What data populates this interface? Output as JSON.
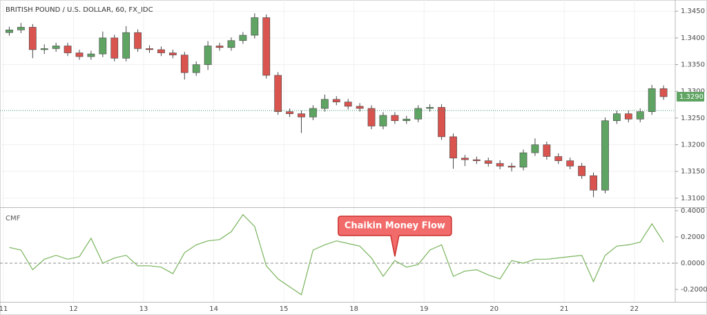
{
  "chart_data": [
    {
      "type": "candlestick",
      "title": "BRITISH POUND / U.S. DOLLAR, 60, FX_IDC",
      "up_color": "#5fa463",
      "down_color": "#d9534f",
      "open": [
        1.341,
        1.3415,
        1.342,
        1.3378,
        1.338,
        1.3385,
        1.3372,
        1.3365,
        1.337,
        1.34,
        1.3362,
        1.341,
        1.338,
        1.3378,
        1.3372,
        1.3368,
        1.3335,
        1.335,
        1.3385,
        1.3382,
        1.3395,
        1.3405,
        1.3438,
        1.333,
        1.3262,
        1.3258,
        1.3252,
        1.3268,
        1.3285,
        1.328,
        1.3272,
        1.3268,
        1.3235,
        1.3255,
        1.3245,
        1.3248,
        1.3268,
        1.327,
        1.3215,
        1.3175,
        1.3172,
        1.317,
        1.3165,
        1.316,
        1.3158,
        1.3185,
        1.32,
        1.3178,
        1.317,
        1.316,
        1.3142,
        1.3115,
        1.3245,
        1.3258,
        1.3248,
        1.3262,
        1.3305
      ],
      "high": [
        1.3421,
        1.3428,
        1.3426,
        1.3388,
        1.3391,
        1.3391,
        1.3378,
        1.3376,
        1.3412,
        1.3406,
        1.3422,
        1.3416,
        1.3386,
        1.3384,
        1.3378,
        1.3374,
        1.3356,
        1.3394,
        1.3391,
        1.3401,
        1.3411,
        1.3446,
        1.3444,
        1.3336,
        1.3268,
        1.3264,
        1.3274,
        1.3294,
        1.3291,
        1.3286,
        1.3278,
        1.3274,
        1.3261,
        1.3261,
        1.3254,
        1.3274,
        1.3276,
        1.3276,
        1.3221,
        1.3181,
        1.3178,
        1.3176,
        1.3171,
        1.3166,
        1.3191,
        1.3212,
        1.3206,
        1.3184,
        1.3176,
        1.3166,
        1.3148,
        1.3251,
        1.3264,
        1.3264,
        1.3268,
        1.3312,
        1.3311
      ],
      "low": [
        1.3404,
        1.3409,
        1.3362,
        1.337,
        1.3374,
        1.3366,
        1.3359,
        1.3359,
        1.3364,
        1.3356,
        1.3356,
        1.3374,
        1.3372,
        1.3366,
        1.3362,
        1.3322,
        1.3329,
        1.334,
        1.3376,
        1.3376,
        1.3389,
        1.3399,
        1.3324,
        1.3256,
        1.3252,
        1.3222,
        1.3246,
        1.3262,
        1.3274,
        1.3266,
        1.3262,
        1.3229,
        1.3229,
        1.3239,
        1.3239,
        1.3242,
        1.3262,
        1.3209,
        1.3155,
        1.316,
        1.3164,
        1.3159,
        1.3154,
        1.315,
        1.3152,
        1.3179,
        1.3172,
        1.3164,
        1.3154,
        1.3136,
        1.3102,
        1.3109,
        1.3239,
        1.3242,
        1.3242,
        1.3256,
        1.3284
      ],
      "close": [
        1.3415,
        1.342,
        1.3378,
        1.338,
        1.3385,
        1.3372,
        1.3365,
        1.337,
        1.34,
        1.3362,
        1.341,
        1.338,
        1.3378,
        1.3372,
        1.3368,
        1.3335,
        1.335,
        1.3385,
        1.3382,
        1.3395,
        1.3405,
        1.3438,
        1.333,
        1.3262,
        1.3258,
        1.3252,
        1.3268,
        1.3285,
        1.328,
        1.3272,
        1.3268,
        1.3235,
        1.3255,
        1.3245,
        1.3248,
        1.3268,
        1.327,
        1.3215,
        1.3175,
        1.3172,
        1.317,
        1.3165,
        1.316,
        1.3158,
        1.3185,
        1.32,
        1.3178,
        1.317,
        1.316,
        1.3142,
        1.3115,
        1.3245,
        1.3258,
        1.3248,
        1.3262,
        1.3305,
        1.329
      ],
      "xlim": [
        -0.5,
        57
      ],
      "ylim": [
        1.3083,
        1.3471
      ],
      "yticks": [
        {
          "value": 1.345,
          "label": "1.3450"
        },
        {
          "value": 1.34,
          "label": "1.3400"
        },
        {
          "value": 1.335,
          "label": "1.3350"
        },
        {
          "value": 1.33,
          "label": "1.3300"
        },
        {
          "value": 1.325,
          "label": "1.3250"
        },
        {
          "value": 1.32,
          "label": "1.3200"
        },
        {
          "value": 1.315,
          "label": "1.3150"
        },
        {
          "value": 1.31,
          "label": "1.3100"
        }
      ],
      "last_price": {
        "value": 1.329,
        "label": "1.3290"
      },
      "reference_line": 1.3264,
      "grid": true
    },
    {
      "type": "line",
      "title": "CMF",
      "color": "#77b35a",
      "values": [
        0.12,
        0.1,
        -0.05,
        0.03,
        0.06,
        0.03,
        0.05,
        0.19,
        0.0,
        0.04,
        0.06,
        -0.02,
        -0.02,
        -0.03,
        -0.08,
        0.08,
        0.14,
        0.17,
        0.18,
        0.24,
        0.37,
        0.28,
        -0.02,
        -0.12,
        -0.18,
        -0.24,
        0.1,
        0.14,
        0.17,
        0.15,
        0.13,
        0.04,
        -0.1,
        0.02,
        -0.03,
        -0.01,
        0.1,
        0.14,
        -0.1,
        -0.06,
        -0.05,
        -0.09,
        -0.12,
        0.02,
        0.0,
        0.03,
        0.03,
        0.04,
        0.05,
        0.06,
        -0.14,
        0.06,
        0.13,
        0.14,
        0.16,
        0.3,
        0.16
      ],
      "xlim": [
        -0.5,
        57
      ],
      "xticks": [
        {
          "value": -0.5,
          "label": "11"
        },
        {
          "value": 5.5,
          "label": "12"
        },
        {
          "value": 11.5,
          "label": "13"
        },
        {
          "value": 17.5,
          "label": "14"
        },
        {
          "value": 23.5,
          "label": "15"
        },
        {
          "value": 29.5,
          "label": "18"
        },
        {
          "value": 35.5,
          "label": "19"
        },
        {
          "value": 41.5,
          "label": "20"
        },
        {
          "value": 47.5,
          "label": "21"
        },
        {
          "value": 53.5,
          "label": "22"
        }
      ],
      "ylim": [
        -0.295,
        0.421
      ],
      "yticks": [
        {
          "value": 0.4,
          "label": "0.4000"
        },
        {
          "value": 0.2,
          "label": "0.2000"
        },
        {
          "value": 0,
          "label": "0.0000"
        },
        {
          "value": -0.2,
          "label": "-0.2000"
        }
      ],
      "zero_line": 0,
      "annotation": {
        "text": "Chaikin Money Flow",
        "index": 33
      }
    }
  ]
}
